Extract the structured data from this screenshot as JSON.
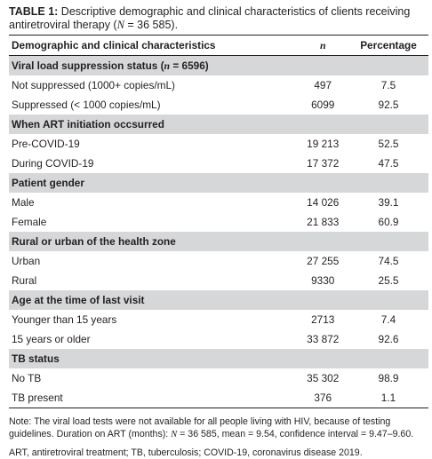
{
  "caption": {
    "label": "TABLE 1:",
    "text_pre": " Descriptive demographic and clinical characteristics of clients receiving antiretroviral therapy (",
    "n_symbol": "N",
    "text_post": " = 36 585)."
  },
  "headers": {
    "characteristic": "Demographic and clinical characteristics",
    "n": "n",
    "percentage": "Percentage"
  },
  "sections": [
    {
      "title_pre": "Viral load suppression status (",
      "title_sym": "n",
      "title_post": " = 6596)",
      "rows": [
        {
          "label": "Not suppressed (1000+ copies/mL)",
          "n": "497",
          "pct": "7.5"
        },
        {
          "label": "Suppressed (< 1000 copies/mL)",
          "n": "6099",
          "pct": "92.5"
        }
      ]
    },
    {
      "title_pre": "When ART initiation occsurred",
      "rows": [
        {
          "label": "Pre-COVID-19",
          "n": "19 213",
          "pct": "52.5"
        },
        {
          "label": "During COVID-19",
          "n": "17 372",
          "pct": "47.5"
        }
      ]
    },
    {
      "title_pre": "Patient gender",
      "rows": [
        {
          "label": "Male",
          "n": "14 026",
          "pct": "39.1"
        },
        {
          "label": "Female",
          "n": "21 833",
          "pct": "60.9"
        }
      ]
    },
    {
      "title_pre": "Rural or urban of the health zone",
      "rows": [
        {
          "label": "Urban",
          "n": "27 255",
          "pct": "74.5"
        },
        {
          "label": "Rural",
          "n": "9330",
          "pct": "25.5"
        }
      ]
    },
    {
      "title_pre": "Age at the time of last visit",
      "rows": [
        {
          "label": "Younger than 15 years",
          "n": "2713",
          "pct": "7.4"
        },
        {
          "label": "15 years or older",
          "n": "33 872",
          "pct": "92.6"
        }
      ]
    },
    {
      "title_pre": "TB status",
      "rows": [
        {
          "label": "No TB",
          "n": "35 302",
          "pct": "98.9"
        },
        {
          "label": "TB present",
          "n": "376",
          "pct": "1.1"
        }
      ]
    }
  ],
  "notes": {
    "note_pre": "Note: The viral load tests were not available for all people living with HIV, because of testing guidelines. Duration on ART (months): ",
    "note_sym": "N",
    "note_post": " = 36 585, mean = 9.54, confidence interval = 9.47–9.60.",
    "abbreviations": "ART, antiretroviral treatment; TB, tuberculosis; COVID-19, coronavirus disease 2019."
  }
}
